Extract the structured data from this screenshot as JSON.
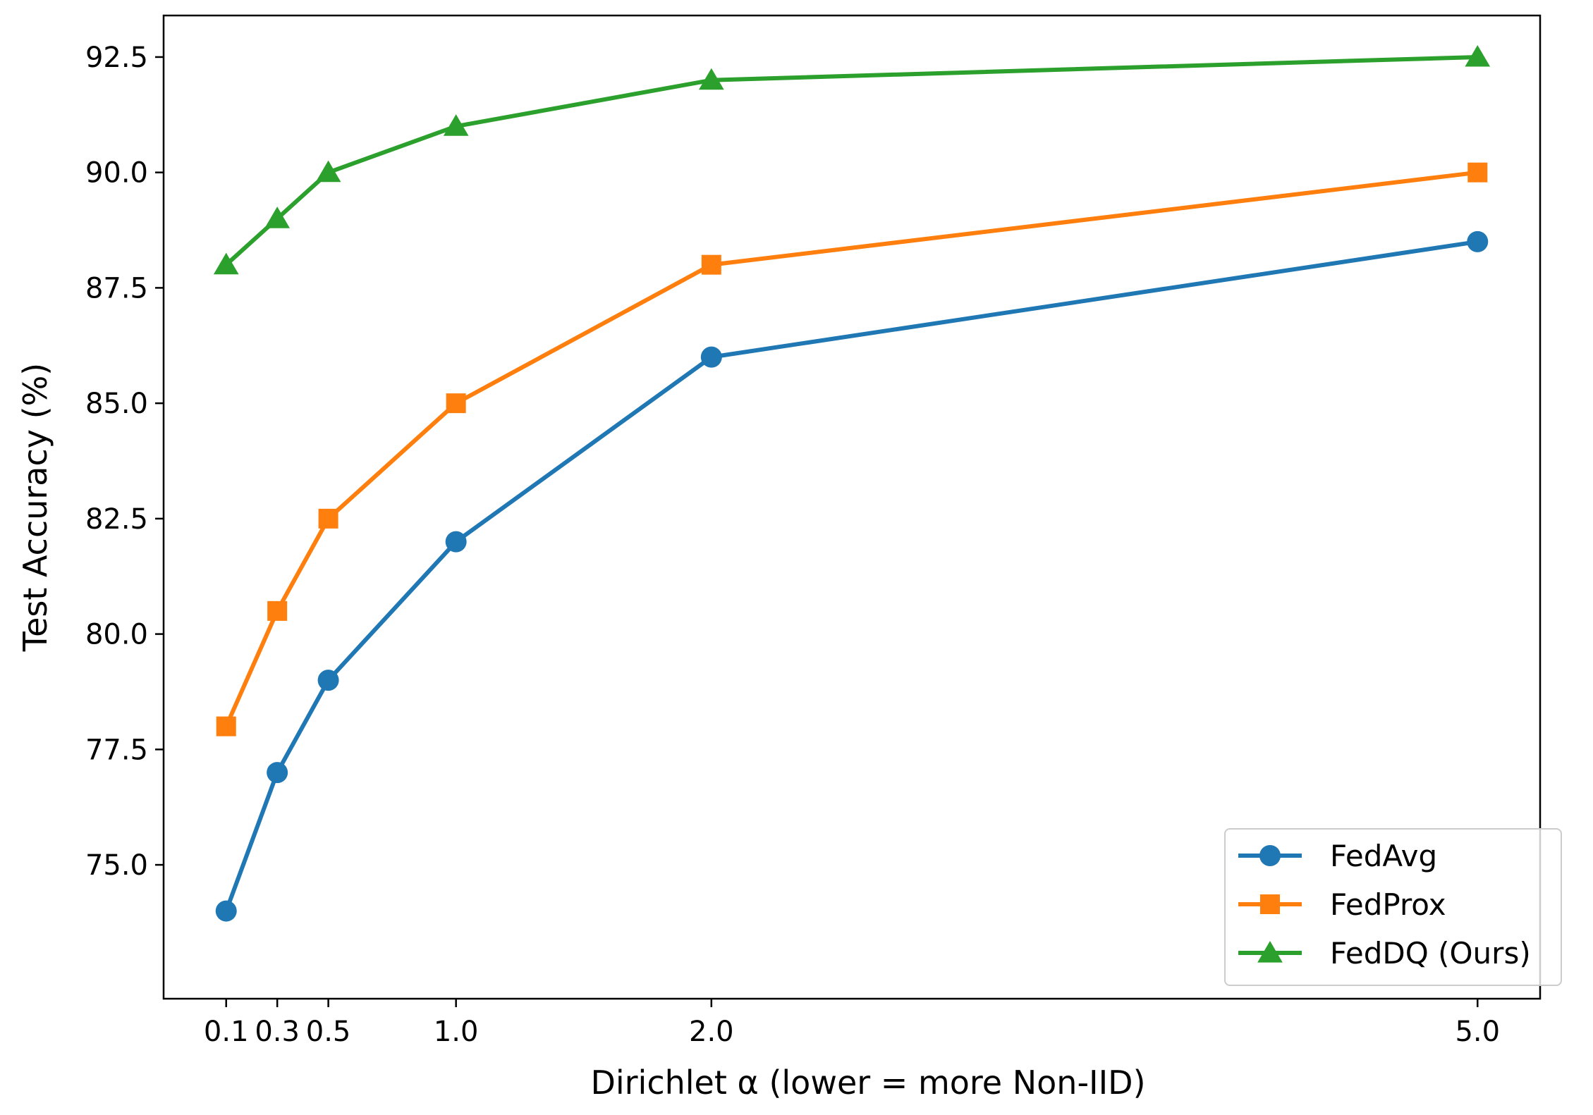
{
  "chart_data": {
    "type": "line",
    "title": "",
    "xlabel": "Dirichlet α (lower = more Non-IID)",
    "ylabel": "Test Accuracy (%)",
    "x": [
      0.1,
      0.3,
      0.5,
      1.0,
      2.0,
      5.0
    ],
    "xticks": [
      0.1,
      0.3,
      0.5,
      1.0,
      2.0,
      5.0
    ],
    "xtick_labels": [
      "0.1",
      "0.3",
      "0.5",
      "1.0",
      "2.0",
      "5.0"
    ],
    "yticks": [
      75.0,
      77.5,
      80.0,
      82.5,
      85.0,
      87.5,
      90.0,
      92.5
    ],
    "ytick_labels": [
      "75.0",
      "77.5",
      "80.0",
      "82.5",
      "85.0",
      "87.5",
      "90.0",
      "92.5"
    ],
    "xlim": [
      -0.145,
      5.245
    ],
    "ylim": [
      72.1,
      93.4
    ],
    "grid": false,
    "legend_position": "lower-right",
    "series": [
      {
        "name": "FedAvg",
        "color": "#1f77b4",
        "marker": "circle",
        "values": [
          74.0,
          77.0,
          79.0,
          82.0,
          86.0,
          88.5
        ]
      },
      {
        "name": "FedProx",
        "color": "#ff7f0e",
        "marker": "square",
        "values": [
          78.0,
          80.5,
          82.5,
          85.0,
          88.0,
          90.0
        ]
      },
      {
        "name": "FedDQ (Ours)",
        "color": "#2ca02c",
        "marker": "triangle",
        "values": [
          88.0,
          89.0,
          90.0,
          91.0,
          92.0,
          92.5
        ]
      }
    ]
  }
}
